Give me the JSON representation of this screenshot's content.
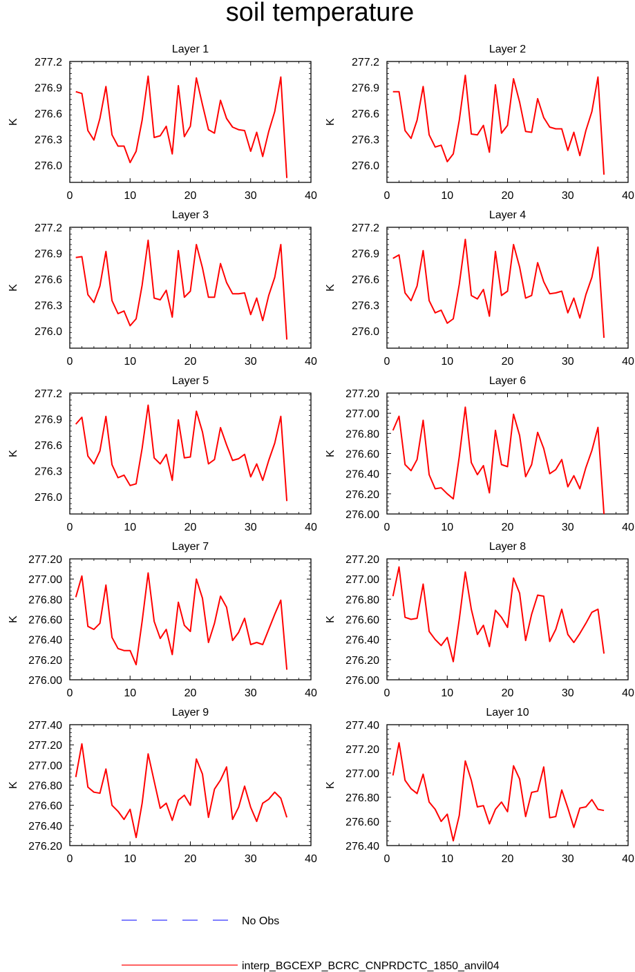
{
  "figure": {
    "title": "soil temperature",
    "legend": [
      {
        "label": "No Obs",
        "color": "#3333ff",
        "style": "dashed"
      },
      {
        "label": "interp_BGCEXP_BCRC_CNPRDCTC_1850_anvil04",
        "color": "#ff0000",
        "style": "solid"
      }
    ]
  },
  "chart_data": [
    {
      "type": "line",
      "title": "Layer 1",
      "ylabel": "K",
      "xlim": [
        0,
        40
      ],
      "ylim": [
        275.8,
        277.2
      ],
      "xticks": [
        "0",
        "10",
        "20",
        "30",
        "40"
      ],
      "yticks": [
        "276.0",
        "276.3",
        "276.6",
        "276.9",
        "277.2"
      ],
      "ytick_values": [
        276.0,
        276.3,
        276.6,
        276.9,
        277.2
      ],
      "x": [
        1,
        2,
        3,
        4,
        5,
        6,
        7,
        8,
        9,
        10,
        11,
        12,
        13,
        14,
        15,
        16,
        17,
        18,
        19,
        20,
        21,
        22,
        23,
        24,
        25,
        26,
        27,
        28,
        29,
        30,
        31,
        32,
        33,
        34,
        35,
        36
      ],
      "series": [
        {
          "name": "interp_BGCEXP_BCRC_CNPRDCTC_1850_anvil04",
          "color": "#ff0000",
          "values": [
            276.85,
            276.83,
            276.4,
            276.29,
            276.54,
            276.91,
            276.35,
            276.22,
            276.22,
            276.03,
            276.16,
            276.52,
            277.03,
            276.32,
            276.34,
            276.45,
            276.13,
            276.92,
            276.33,
            276.45,
            277.01,
            276.7,
            276.41,
            276.37,
            276.75,
            276.54,
            276.44,
            276.41,
            276.4,
            276.16,
            276.38,
            276.1,
            276.39,
            276.62,
            277.02,
            275.85
          ]
        }
      ]
    },
    {
      "type": "line",
      "title": "Layer 2",
      "ylabel": "K",
      "xlim": [
        0,
        40
      ],
      "ylim": [
        275.8,
        277.2
      ],
      "xticks": [
        "0",
        "10",
        "20",
        "30",
        "40"
      ],
      "yticks": [
        "276.0",
        "276.3",
        "276.6",
        "276.9",
        "277.2"
      ],
      "ytick_values": [
        276.0,
        276.3,
        276.6,
        276.9,
        277.2
      ],
      "x": [
        1,
        2,
        3,
        4,
        5,
        6,
        7,
        8,
        9,
        10,
        11,
        12,
        13,
        14,
        15,
        16,
        17,
        18,
        19,
        20,
        21,
        22,
        23,
        24,
        25,
        26,
        27,
        28,
        29,
        30,
        31,
        32,
        33,
        34,
        35,
        36
      ],
      "series": [
        {
          "name": "interp_BGCEXP_BCRC_CNPRDCTC_1850_anvil04",
          "color": "#ff0000",
          "values": [
            276.85,
            276.85,
            276.4,
            276.31,
            276.52,
            276.91,
            276.35,
            276.21,
            276.23,
            276.04,
            276.13,
            276.52,
            277.04,
            276.36,
            276.35,
            276.46,
            276.15,
            276.93,
            276.37,
            276.46,
            277.0,
            276.73,
            276.39,
            276.38,
            276.77,
            276.55,
            276.44,
            276.42,
            276.42,
            276.17,
            276.38,
            276.11,
            276.4,
            276.62,
            277.02,
            275.89
          ]
        }
      ]
    },
    {
      "type": "line",
      "title": "Layer 3",
      "ylabel": "K",
      "xlim": [
        0,
        40
      ],
      "ylim": [
        275.8,
        277.2
      ],
      "xticks": [
        "0",
        "10",
        "20",
        "30",
        "40"
      ],
      "yticks": [
        "276.0",
        "276.3",
        "276.6",
        "276.9",
        "277.2"
      ],
      "ytick_values": [
        276.0,
        276.3,
        276.6,
        276.9,
        277.2
      ],
      "x": [
        1,
        2,
        3,
        4,
        5,
        6,
        7,
        8,
        9,
        10,
        11,
        12,
        13,
        14,
        15,
        16,
        17,
        18,
        19,
        20,
        21,
        22,
        23,
        24,
        25,
        26,
        27,
        28,
        29,
        30,
        31,
        32,
        33,
        34,
        35,
        36
      ],
      "series": [
        {
          "name": "interp_BGCEXP_BCRC_CNPRDCTC_1850_anvil04",
          "color": "#ff0000",
          "values": [
            276.85,
            276.86,
            276.42,
            276.33,
            276.52,
            276.92,
            276.35,
            276.2,
            276.23,
            276.06,
            276.14,
            276.53,
            277.05,
            276.38,
            276.36,
            276.47,
            276.16,
            276.93,
            276.39,
            276.46,
            277.0,
            276.73,
            276.39,
            276.39,
            276.78,
            276.56,
            276.43,
            276.43,
            276.44,
            276.19,
            276.38,
            276.12,
            276.41,
            276.62,
            277.0,
            275.9
          ]
        }
      ]
    },
    {
      "type": "line",
      "title": "Layer 4",
      "ylabel": "K",
      "xlim": [
        0,
        40
      ],
      "ylim": [
        275.8,
        277.2
      ],
      "xticks": [
        "0",
        "10",
        "20",
        "30",
        "40"
      ],
      "yticks": [
        "276.0",
        "276.3",
        "276.6",
        "276.9",
        "277.2"
      ],
      "ytick_values": [
        276.0,
        276.3,
        276.6,
        276.9,
        277.2
      ],
      "x": [
        1,
        2,
        3,
        4,
        5,
        6,
        7,
        8,
        9,
        10,
        11,
        12,
        13,
        14,
        15,
        16,
        17,
        18,
        19,
        20,
        21,
        22,
        23,
        24,
        25,
        26,
        27,
        28,
        29,
        30,
        31,
        32,
        33,
        34,
        35,
        36
      ],
      "series": [
        {
          "name": "interp_BGCEXP_BCRC_CNPRDCTC_1850_anvil04",
          "color": "#ff0000",
          "values": [
            276.84,
            276.88,
            276.44,
            276.35,
            276.52,
            276.93,
            276.35,
            276.21,
            276.24,
            276.09,
            276.14,
            276.54,
            277.06,
            276.41,
            276.37,
            276.48,
            276.17,
            276.92,
            276.41,
            276.46,
            277.0,
            276.74,
            276.38,
            276.41,
            276.79,
            276.57,
            276.43,
            276.44,
            276.46,
            276.21,
            276.38,
            276.15,
            276.42,
            276.62,
            276.97,
            275.92
          ]
        }
      ]
    },
    {
      "type": "line",
      "title": "Layer 5",
      "ylabel": "K",
      "xlim": [
        0,
        40
      ],
      "ylim": [
        275.8,
        277.2
      ],
      "xticks": [
        "0",
        "10",
        "20",
        "30",
        "40"
      ],
      "yticks": [
        "276.0",
        "276.3",
        "276.6",
        "276.9",
        "277.2"
      ],
      "ytick_values": [
        276.0,
        276.3,
        276.6,
        276.9,
        277.2
      ],
      "x": [
        1,
        2,
        3,
        4,
        5,
        6,
        7,
        8,
        9,
        10,
        11,
        12,
        13,
        14,
        15,
        16,
        17,
        18,
        19,
        20,
        21,
        22,
        23,
        24,
        25,
        26,
        27,
        28,
        29,
        30,
        31,
        32,
        33,
        34,
        35,
        36
      ],
      "series": [
        {
          "name": "interp_BGCEXP_BCRC_CNPRDCTC_1850_anvil04",
          "color": "#ff0000",
          "values": [
            276.84,
            276.92,
            276.47,
            276.38,
            276.53,
            276.93,
            276.37,
            276.22,
            276.25,
            276.13,
            276.15,
            276.56,
            277.06,
            276.45,
            276.38,
            276.49,
            276.19,
            276.89,
            276.45,
            276.46,
            276.99,
            276.75,
            276.38,
            276.43,
            276.8,
            276.6,
            276.42,
            276.44,
            276.49,
            276.23,
            276.38,
            276.19,
            276.42,
            276.62,
            276.93,
            275.95
          ]
        }
      ]
    },
    {
      "type": "line",
      "title": "Layer 6",
      "ylabel": "K",
      "xlim": [
        0,
        40
      ],
      "ylim": [
        276.0,
        277.2
      ],
      "xticks": [
        "0",
        "10",
        "20",
        "30",
        "40"
      ],
      "yticks": [
        "276.00",
        "276.20",
        "276.40",
        "276.60",
        "276.80",
        "277.00",
        "277.20"
      ],
      "ytick_values": [
        276.0,
        276.2,
        276.4,
        276.6,
        276.8,
        277.0,
        277.2
      ],
      "x": [
        1,
        2,
        3,
        4,
        5,
        6,
        7,
        8,
        9,
        10,
        11,
        12,
        13,
        14,
        15,
        16,
        17,
        18,
        19,
        20,
        21,
        22,
        23,
        24,
        25,
        26,
        27,
        28,
        29,
        30,
        31,
        32,
        33,
        34,
        35,
        36
      ],
      "series": [
        {
          "name": "interp_BGCEXP_BCRC_CNPRDCTC_1850_anvil04",
          "color": "#ff0000",
          "values": [
            276.83,
            276.97,
            276.49,
            276.43,
            276.54,
            276.93,
            276.39,
            276.25,
            276.26,
            276.2,
            276.15,
            276.57,
            277.06,
            276.51,
            276.39,
            276.48,
            276.21,
            276.83,
            276.49,
            276.47,
            276.99,
            276.78,
            276.37,
            276.49,
            276.81,
            276.65,
            276.4,
            276.44,
            276.54,
            276.27,
            276.38,
            276.25,
            276.46,
            276.63,
            276.86,
            276.0
          ]
        }
      ]
    },
    {
      "type": "line",
      "title": "Layer 7",
      "ylabel": "K",
      "xlim": [
        0,
        40
      ],
      "ylim": [
        276.0,
        277.2
      ],
      "xticks": [
        "0",
        "10",
        "20",
        "30",
        "40"
      ],
      "yticks": [
        "276.00",
        "276.20",
        "276.40",
        "276.60",
        "276.80",
        "277.00",
        "277.20"
      ],
      "ytick_values": [
        276.0,
        276.2,
        276.4,
        276.6,
        276.8,
        277.0,
        277.2
      ],
      "x": [
        1,
        2,
        3,
        4,
        5,
        6,
        7,
        8,
        9,
        10,
        11,
        12,
        13,
        14,
        15,
        16,
        17,
        18,
        19,
        20,
        21,
        22,
        23,
        24,
        25,
        26,
        27,
        28,
        29,
        30,
        31,
        32,
        33,
        34,
        35,
        36
      ],
      "series": [
        {
          "name": "interp_BGCEXP_BCRC_CNPRDCTC_1850_anvil04",
          "color": "#ff0000",
          "values": [
            276.82,
            277.03,
            276.53,
            276.5,
            276.56,
            276.94,
            276.42,
            276.31,
            276.29,
            276.29,
            276.15,
            276.58,
            277.06,
            276.58,
            276.41,
            276.5,
            276.25,
            276.77,
            276.54,
            276.48,
            277.0,
            276.81,
            276.37,
            276.56,
            276.83,
            276.72,
            276.39,
            276.47,
            276.61,
            276.35,
            276.37,
            276.35,
            276.5,
            276.65,
            276.79,
            276.1
          ]
        }
      ]
    },
    {
      "type": "line",
      "title": "Layer 8",
      "ylabel": "K",
      "xlim": [
        0,
        40
      ],
      "ylim": [
        276.0,
        277.2
      ],
      "xticks": [
        "0",
        "10",
        "20",
        "30",
        "40"
      ],
      "yticks": [
        "276.00",
        "276.20",
        "276.40",
        "276.60",
        "276.80",
        "277.00",
        "277.20"
      ],
      "ytick_values": [
        276.0,
        276.2,
        276.4,
        276.6,
        276.8,
        277.0,
        277.2
      ],
      "x": [
        1,
        2,
        3,
        4,
        5,
        6,
        7,
        8,
        9,
        10,
        11,
        12,
        13,
        14,
        15,
        16,
        17,
        18,
        19,
        20,
        21,
        22,
        23,
        24,
        25,
        26,
        27,
        28,
        29,
        30,
        31,
        32,
        33,
        34,
        35,
        36
      ],
      "series": [
        {
          "name": "interp_BGCEXP_BCRC_CNPRDCTC_1850_anvil04",
          "color": "#ff0000",
          "values": [
            276.83,
            277.12,
            276.62,
            276.6,
            276.61,
            276.95,
            276.48,
            276.4,
            276.34,
            276.42,
            276.18,
            276.6,
            277.07,
            276.7,
            276.45,
            276.54,
            276.33,
            276.69,
            276.62,
            276.52,
            277.01,
            276.86,
            276.39,
            276.65,
            276.84,
            276.83,
            276.38,
            276.5,
            276.7,
            276.45,
            276.37,
            276.46,
            276.56,
            276.67,
            276.7,
            276.26
          ]
        }
      ]
    },
    {
      "type": "line",
      "title": "Layer 9",
      "ylabel": "K",
      "xlim": [
        0,
        40
      ],
      "ylim": [
        276.2,
        277.4
      ],
      "xticks": [
        "0",
        "10",
        "20",
        "30",
        "40"
      ],
      "yticks": [
        "276.20",
        "276.40",
        "276.60",
        "276.80",
        "277.00",
        "277.20",
        "277.40"
      ],
      "ytick_values": [
        276.2,
        276.4,
        276.6,
        276.8,
        277.0,
        277.2,
        277.4
      ],
      "x": [
        1,
        2,
        3,
        4,
        5,
        6,
        7,
        8,
        9,
        10,
        11,
        12,
        13,
        14,
        15,
        16,
        17,
        18,
        19,
        20,
        21,
        22,
        23,
        24,
        25,
        26,
        27,
        28,
        29,
        30,
        31,
        32,
        33,
        34,
        35,
        36
      ],
      "series": [
        {
          "name": "interp_BGCEXP_BCRC_CNPRDCTC_1850_anvil04",
          "color": "#ff0000",
          "values": [
            276.88,
            277.21,
            276.78,
            276.73,
            276.72,
            276.96,
            276.6,
            276.54,
            276.46,
            276.56,
            276.28,
            276.62,
            277.11,
            276.84,
            276.57,
            276.62,
            276.45,
            276.65,
            276.7,
            276.6,
            277.06,
            276.91,
            276.48,
            276.76,
            276.85,
            276.98,
            276.46,
            276.58,
            276.79,
            276.58,
            276.44,
            276.62,
            276.66,
            276.73,
            276.67,
            276.48
          ]
        }
      ]
    },
    {
      "type": "line",
      "title": "Layer 10",
      "ylabel": "K",
      "xlim": [
        0,
        40
      ],
      "ylim": [
        276.4,
        277.4
      ],
      "xticks": [
        "0",
        "10",
        "20",
        "30",
        "40"
      ],
      "yticks": [
        "276.40",
        "276.60",
        "276.80",
        "277.00",
        "277.20",
        "277.40"
      ],
      "ytick_values": [
        276.4,
        276.6,
        276.8,
        277.0,
        277.2,
        277.4
      ],
      "x": [
        1,
        2,
        3,
        4,
        5,
        6,
        7,
        8,
        9,
        10,
        11,
        12,
        13,
        14,
        15,
        16,
        17,
        18,
        19,
        20,
        21,
        22,
        23,
        24,
        25,
        26,
        27,
        28,
        29,
        30,
        31,
        32,
        33,
        34,
        35,
        36
      ],
      "series": [
        {
          "name": "interp_BGCEXP_BCRC_CNPRDCTC_1850_anvil04",
          "color": "#ff0000",
          "values": [
            276.98,
            277.25,
            276.94,
            276.87,
            276.83,
            276.99,
            276.76,
            276.7,
            276.6,
            276.66,
            276.44,
            276.65,
            277.1,
            276.94,
            276.72,
            276.73,
            276.58,
            276.7,
            276.76,
            276.68,
            277.06,
            276.95,
            276.64,
            276.84,
            276.85,
            277.05,
            276.63,
            276.64,
            276.86,
            276.71,
            276.55,
            276.71,
            276.72,
            276.78,
            276.7,
            276.69
          ]
        }
      ]
    }
  ]
}
